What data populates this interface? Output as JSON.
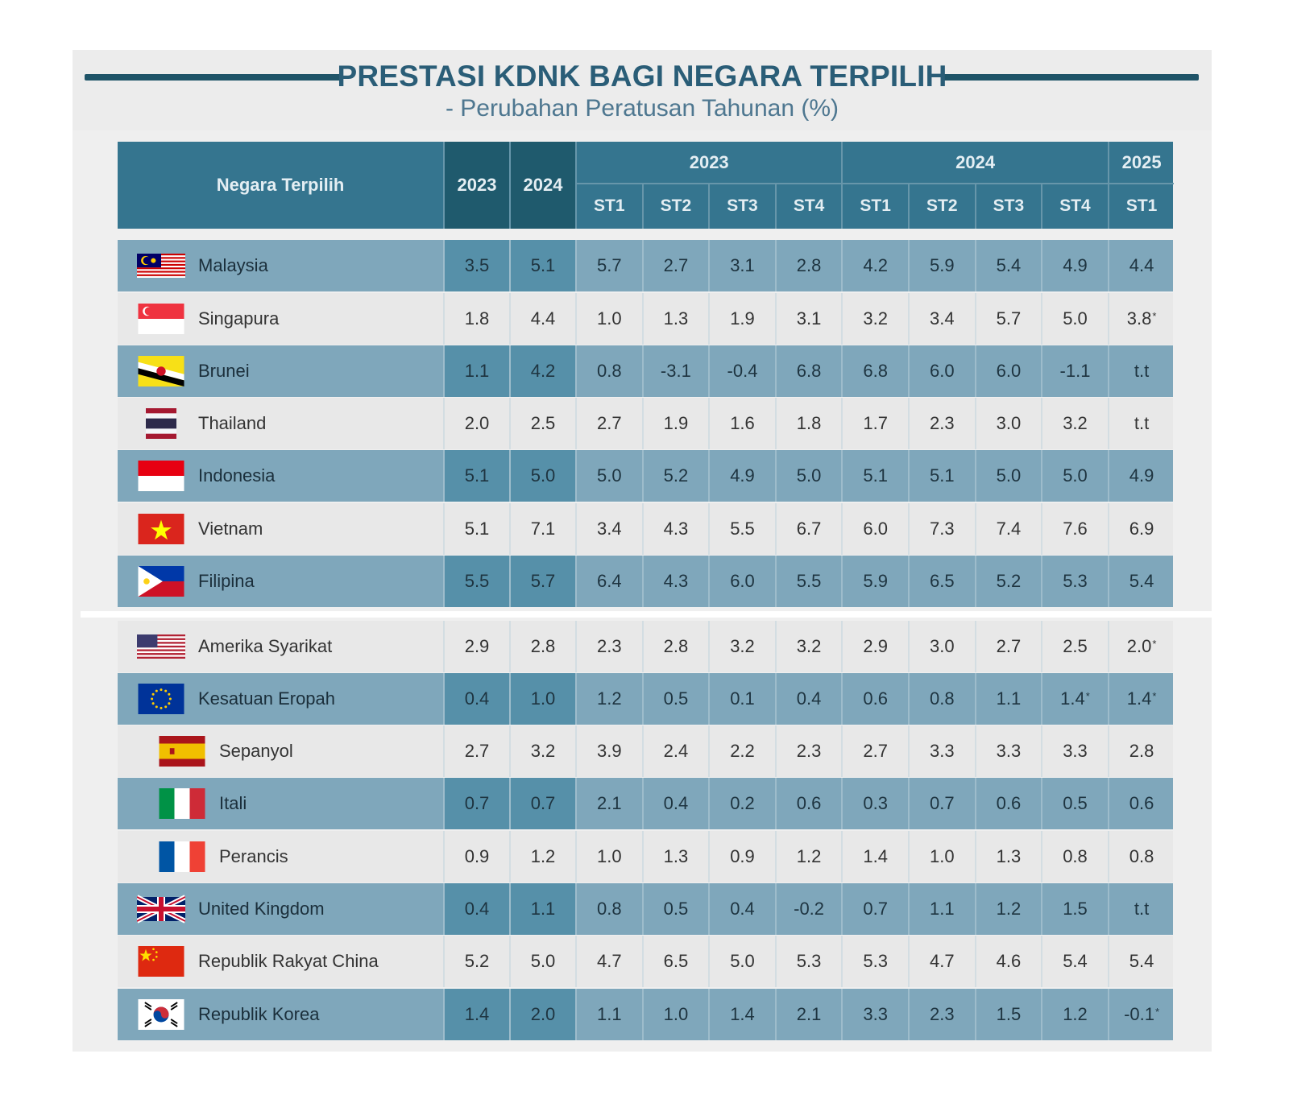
{
  "title": "PRESTASI KDNK BAGI NEGARA TERPILIH",
  "subtitle": "- Perubahan Peratusan Tahunan (%)",
  "colors": {
    "header": "#35758f",
    "header_dark": "#1f5a6d",
    "row_blue": "#7fa7bb",
    "row_light": "#e8e8e8",
    "title": "#2a5d77"
  },
  "header": {
    "country": "Negara Terpilih",
    "annual": [
      "2023",
      "2024"
    ],
    "groups": [
      {
        "label": "2023",
        "quarters": [
          "ST1",
          "ST2",
          "ST3",
          "ST4"
        ]
      },
      {
        "label": "2024",
        "quarters": [
          "ST1",
          "ST2",
          "ST3",
          "ST4"
        ]
      },
      {
        "label": "2025",
        "quarters": [
          "ST1"
        ]
      }
    ]
  },
  "chart_data": {
    "type": "table",
    "title": "PRESTASI KDNK BAGI NEGARA TERPILIH",
    "subtitle": "- Perubahan Peratusan Tahunan (%)",
    "columns": [
      "2023",
      "2024",
      "2023 ST1",
      "2023 ST2",
      "2023 ST3",
      "2023 ST4",
      "2024 ST1",
      "2024 ST2",
      "2024 ST3",
      "2024 ST4",
      "2025 ST1"
    ],
    "rows": [
      {
        "country": "Malaysia",
        "flag": "malaysia-flag",
        "values": [
          "3.5",
          "5.1",
          "5.7",
          "2.7",
          "3.1",
          "2.8",
          "4.2",
          "5.9",
          "5.4",
          "4.9",
          "4.4"
        ]
      },
      {
        "country": "Singapura",
        "flag": "singapore-flag",
        "values": [
          "1.8",
          "4.4",
          "1.0",
          "1.3",
          "1.9",
          "3.1",
          "3.2",
          "3.4",
          "5.7",
          "5.0",
          "3.8*"
        ]
      },
      {
        "country": "Brunei",
        "flag": "brunei-flag",
        "values": [
          "1.1",
          "4.2",
          "0.8",
          "-3.1",
          "-0.4",
          "6.8",
          "6.8",
          "6.0",
          "6.0",
          "-1.1",
          "t.t"
        ]
      },
      {
        "country": "Thailand",
        "flag": "thailand-flag",
        "values": [
          "2.0",
          "2.5",
          "2.7",
          "1.9",
          "1.6",
          "1.8",
          "1.7",
          "2.3",
          "3.0",
          "3.2",
          "t.t"
        ]
      },
      {
        "country": "Indonesia",
        "flag": "indonesia-flag",
        "values": [
          "5.1",
          "5.0",
          "5.0",
          "5.2",
          "4.9",
          "5.0",
          "5.1",
          "5.1",
          "5.0",
          "5.0",
          "4.9"
        ]
      },
      {
        "country": "Vietnam",
        "flag": "vietnam-flag",
        "values": [
          "5.1",
          "7.1",
          "3.4",
          "4.3",
          "5.5",
          "6.7",
          "6.0",
          "7.3",
          "7.4",
          "7.6",
          "6.9"
        ]
      },
      {
        "country": "Filipina",
        "flag": "philippines-flag",
        "values": [
          "5.5",
          "5.7",
          "6.4",
          "4.3",
          "6.0",
          "5.5",
          "5.9",
          "6.5",
          "5.2",
          "5.3",
          "5.4"
        ]
      },
      {
        "country": "Amerika Syarikat",
        "flag": "usa-flag",
        "values": [
          "2.9",
          "2.8",
          "2.3",
          "2.8",
          "3.2",
          "3.2",
          "2.9",
          "3.0",
          "2.7",
          "2.5",
          "2.0*"
        ]
      },
      {
        "country": "Kesatuan Eropah",
        "flag": "eu-flag",
        "values": [
          "0.4",
          "1.0",
          "1.2",
          "0.5",
          "0.1",
          "0.4",
          "0.6",
          "0.8",
          "1.1",
          "1.4*",
          "1.4*"
        ]
      },
      {
        "country": "Sepanyol",
        "flag": "spain-flag",
        "indent": true,
        "values": [
          "2.7",
          "3.2",
          "3.9",
          "2.4",
          "2.2",
          "2.3",
          "2.7",
          "3.3",
          "3.3",
          "3.3",
          "2.8"
        ]
      },
      {
        "country": "Itali",
        "flag": "italy-flag",
        "indent": true,
        "values": [
          "0.7",
          "0.7",
          "2.1",
          "0.4",
          "0.2",
          "0.6",
          "0.3",
          "0.7",
          "0.6",
          "0.5",
          "0.6"
        ]
      },
      {
        "country": "Perancis",
        "flag": "france-flag",
        "indent": true,
        "values": [
          "0.9",
          "1.2",
          "1.0",
          "1.3",
          "0.9",
          "1.2",
          "1.4",
          "1.0",
          "1.3",
          "0.8",
          "0.8"
        ]
      },
      {
        "country": "United Kingdom",
        "flag": "uk-flag",
        "values": [
          "0.4",
          "1.1",
          "0.8",
          "0.5",
          "0.4",
          "-0.2",
          "0.7",
          "1.1",
          "1.2",
          "1.5",
          "t.t"
        ]
      },
      {
        "country": "Republik Rakyat China",
        "flag": "china-flag",
        "values": [
          "5.2",
          "5.0",
          "4.7",
          "6.5",
          "5.0",
          "5.3",
          "5.3",
          "4.7",
          "4.6",
          "5.4",
          "5.4"
        ]
      },
      {
        "country": "Republik Korea",
        "flag": "korea-flag",
        "values": [
          "1.4",
          "2.0",
          "1.1",
          "1.0",
          "1.4",
          "2.1",
          "3.3",
          "2.3",
          "1.5",
          "1.2",
          "-0.1*"
        ]
      }
    ]
  }
}
